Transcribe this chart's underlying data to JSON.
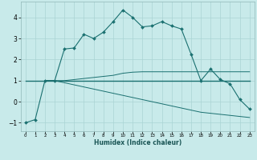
{
  "xlabel": "Humidex (Indice chaleur)",
  "ylabel": "",
  "bg_color": "#c8eaea",
  "line_color": "#1a7070",
  "grid_color": "#aad4d4",
  "xlim": [
    -0.5,
    23.5
  ],
  "ylim": [
    -1.4,
    4.75
  ],
  "yticks": [
    -1,
    0,
    1,
    2,
    3,
    4
  ],
  "xticks": [
    0,
    1,
    2,
    3,
    4,
    5,
    6,
    7,
    8,
    9,
    10,
    11,
    12,
    13,
    14,
    15,
    16,
    17,
    18,
    19,
    20,
    21,
    22,
    23
  ],
  "series1_x": [
    0,
    1,
    2,
    3,
    4,
    5,
    6,
    7,
    8,
    9,
    10,
    11,
    12,
    13,
    14,
    15,
    16,
    17,
    18,
    19,
    20,
    21,
    22,
    23
  ],
  "series1_y": [
    -1.0,
    -0.85,
    1.0,
    1.0,
    2.5,
    2.55,
    3.2,
    3.0,
    3.3,
    3.8,
    4.35,
    4.0,
    3.55,
    3.6,
    3.8,
    3.6,
    3.45,
    2.25,
    1.0,
    1.55,
    1.05,
    0.85,
    0.1,
    -0.35
  ],
  "series2_x": [
    0,
    1,
    2,
    3,
    4,
    5,
    6,
    7,
    8,
    9,
    10,
    11,
    12,
    13,
    14,
    15,
    16,
    17,
    18,
    19,
    20,
    21,
    22,
    23
  ],
  "series2_y": [
    1.0,
    1.0,
    1.0,
    1.0,
    1.0,
    1.0,
    1.0,
    1.0,
    1.0,
    1.0,
    1.0,
    1.0,
    1.0,
    1.0,
    1.0,
    1.0,
    1.0,
    1.0,
    1.0,
    1.0,
    1.0,
    1.0,
    1.0,
    1.0
  ],
  "series3_x": [
    2,
    3,
    4,
    5,
    6,
    7,
    8,
    9,
    10,
    11,
    12,
    13,
    14,
    15,
    16,
    17,
    18,
    19,
    20,
    21,
    22,
    23
  ],
  "series3_y": [
    1.0,
    1.0,
    1.0,
    1.05,
    1.1,
    1.15,
    1.2,
    1.25,
    1.35,
    1.4,
    1.42,
    1.42,
    1.42,
    1.42,
    1.42,
    1.42,
    1.42,
    1.42,
    1.42,
    1.42,
    1.42,
    1.42
  ],
  "series4_x": [
    2,
    3,
    4,
    5,
    6,
    7,
    8,
    9,
    10,
    11,
    12,
    13,
    14,
    15,
    16,
    17,
    18,
    19,
    20,
    21,
    22,
    23
  ],
  "series4_y": [
    1.0,
    1.0,
    0.9,
    0.8,
    0.7,
    0.6,
    0.5,
    0.4,
    0.3,
    0.2,
    0.1,
    0.0,
    -0.1,
    -0.2,
    -0.3,
    -0.4,
    -0.5,
    -0.55,
    -0.6,
    -0.65,
    -0.7,
    -0.75
  ],
  "xlabel_fontsize": 5.5,
  "ylabel_fontsize": 5.5,
  "xtick_fontsize": 4.0,
  "ytick_fontsize": 5.5
}
